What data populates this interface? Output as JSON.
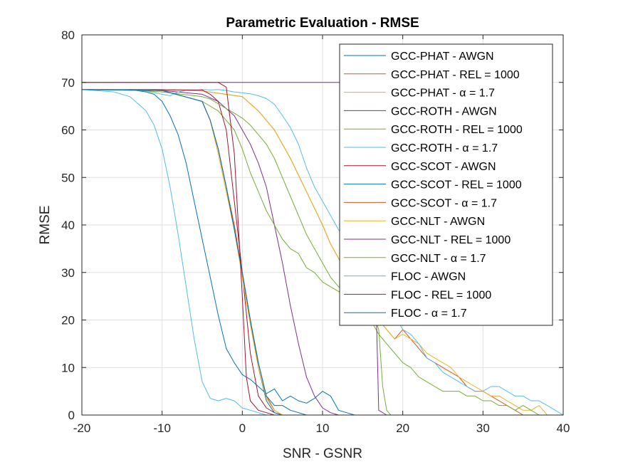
{
  "chart_data": {
    "type": "line",
    "title": "Parametric Evaluation - RMSE",
    "xlabel": "SNR - GSNR",
    "ylabel": "RMSE",
    "xlim": [
      -20,
      40
    ],
    "ylim": [
      0,
      80
    ],
    "xticks": [
      -20,
      -10,
      0,
      10,
      20,
      30,
      40
    ],
    "yticks": [
      0,
      10,
      20,
      30,
      40,
      50,
      60,
      70,
      80
    ],
    "grid": true,
    "legend_position": "top-right",
    "series": [
      {
        "name": "GCC-PHAT - AWGN",
        "color": "#0072BD",
        "x": [
          -20,
          -14,
          -12,
          -11,
          -10,
          -9,
          -8,
          -7,
          -6,
          -5,
          -4,
          -3,
          -2,
          -1,
          0,
          1,
          2,
          3,
          4,
          5,
          6,
          7,
          8,
          9,
          10,
          11,
          12,
          13,
          14,
          20
        ],
        "y": [
          68.5,
          68.5,
          68,
          67.5,
          66,
          63,
          59,
          53,
          45,
          37,
          29,
          21,
          14,
          11,
          8.5,
          7.5,
          6,
          4.5,
          5.5,
          3,
          4,
          3,
          2.5,
          3.5,
          5,
          4,
          1,
          0.5,
          0,
          0
        ]
      },
      {
        "name": "GCC-PHAT - REL = 1000",
        "color": "#D95319",
        "x": [
          -20,
          -10,
          -5,
          0,
          2,
          4,
          6,
          8,
          10,
          11,
          12,
          13,
          14,
          15,
          16,
          17,
          18,
          19,
          20,
          21,
          22,
          23,
          24,
          25,
          26,
          27,
          28,
          29,
          30,
          31,
          32,
          33,
          34,
          35,
          36,
          37,
          38,
          40
        ],
        "y": [
          68.5,
          68.5,
          68.2,
          67,
          64,
          60,
          54,
          47,
          40,
          36,
          33,
          29,
          27,
          25,
          22,
          20,
          18,
          16,
          18,
          16,
          14,
          12,
          11,
          10,
          9,
          8,
          6,
          5,
          5,
          4,
          3,
          2,
          1,
          0,
          0,
          0,
          0,
          0
        ]
      },
      {
        "name": "GCC-PHAT - α = 1.7",
        "color": "#EDB120",
        "x": [
          -20,
          -10,
          -5,
          0,
          2,
          4,
          6,
          8,
          10,
          11,
          12,
          13,
          14,
          15,
          16,
          17,
          18,
          19,
          20,
          21,
          22,
          23,
          24,
          25,
          26,
          27,
          28,
          29,
          30,
          31,
          32,
          33,
          34,
          35,
          36,
          37,
          38,
          40
        ],
        "y": [
          68.5,
          68.5,
          68.2,
          67,
          64,
          60,
          54,
          47,
          40,
          36,
          33,
          29,
          27,
          25,
          22,
          20,
          18,
          16,
          17,
          16,
          15,
          13,
          12,
          11,
          10,
          8,
          7,
          6,
          5,
          4,
          4,
          3,
          2,
          1,
          1,
          2,
          0,
          0
        ]
      },
      {
        "name": "GCC-ROTH - AWGN",
        "color": "#7E2F8E",
        "x": [
          -20,
          -10,
          -5,
          -3,
          -1,
          0,
          1,
          2,
          3,
          4,
          5,
          6,
          7,
          8,
          9,
          10,
          11,
          12,
          13,
          14,
          16,
          20
        ],
        "y": [
          68.5,
          68.3,
          67.5,
          66,
          63,
          60,
          57,
          53,
          48,
          40,
          32,
          23,
          15,
          8,
          4,
          1.5,
          0.5,
          0,
          0,
          0,
          0,
          0
        ]
      },
      {
        "name": "GCC-ROTH - REL = 1000",
        "color": "#77AC30",
        "x": [
          -20,
          -10,
          -5,
          -3,
          -1,
          0,
          1,
          2,
          3,
          4,
          5,
          6,
          7,
          8,
          9,
          10,
          11,
          12,
          13,
          14,
          15,
          16,
          17,
          18,
          19,
          20,
          21,
          22,
          23,
          24,
          25,
          26,
          27,
          28,
          29,
          30,
          31,
          32,
          33,
          34,
          35,
          36,
          37,
          40
        ],
        "y": [
          68.5,
          68.3,
          66,
          64,
          60,
          56,
          51,
          47,
          43,
          40,
          37,
          35,
          34,
          31,
          30,
          28,
          27,
          26,
          25,
          24,
          22,
          20,
          17,
          15,
          13,
          11,
          10,
          8,
          7,
          6,
          5,
          5,
          5,
          4,
          4,
          3,
          3,
          2,
          2,
          1,
          2,
          1,
          0,
          0
        ]
      },
      {
        "name": "GCC-ROTH - α = 1.7",
        "color": "#4DBEEE",
        "x": [
          -20,
          -15,
          -12,
          -10,
          -9,
          -8,
          -7,
          -6,
          -5,
          -4,
          -3,
          -2,
          -1,
          0,
          1,
          2,
          3,
          4,
          5,
          6,
          7,
          8,
          9,
          10,
          11,
          12,
          13,
          14,
          15,
          16,
          17,
          18,
          19,
          20,
          21,
          22,
          23,
          24,
          25,
          26,
          27,
          28,
          29,
          30,
          31,
          32,
          33,
          34,
          35,
          36,
          37,
          38,
          40
        ],
        "y": [
          68.5,
          68.5,
          68.2,
          67.5,
          67.2,
          68,
          68.3,
          68.3,
          68.5,
          68.4,
          68.5,
          68.3,
          68,
          67.8,
          67.6,
          67.2,
          66.6,
          65.4,
          63,
          60.5,
          57,
          52,
          48,
          45,
          42,
          39,
          37,
          35,
          33,
          31,
          28,
          24,
          21,
          18,
          17,
          15,
          12,
          11,
          9,
          8,
          7,
          6,
          5,
          5,
          6,
          6,
          5,
          4,
          4,
          3,
          3,
          2,
          0
        ]
      },
      {
        "name": "GCC-SCOT - AWGN",
        "color": "#A2142F",
        "x": [
          -20,
          -5,
          -4,
          -3,
          -2,
          -1,
          0,
          1,
          2,
          3,
          4,
          5,
          6,
          8,
          10
        ],
        "y": [
          68.5,
          68.4,
          67.5,
          66,
          60,
          45,
          30,
          13,
          4,
          1.5,
          0.5,
          0,
          0,
          0,
          0
        ]
      },
      {
        "name": "GCC-SCOT - REL = 1000",
        "color": "#0072BD",
        "x": [
          -20,
          -10,
          -5,
          -4,
          -3,
          -2,
          -1,
          0,
          1,
          2,
          3,
          4,
          5,
          6,
          7,
          8,
          10
        ],
        "y": [
          68.5,
          68.3,
          66,
          62,
          56,
          48,
          39,
          30,
          20,
          10,
          3,
          0.5,
          0,
          0,
          0,
          0,
          0
        ]
      },
      {
        "name": "GCC-SCOT - α = 1.7",
        "color": "#D95319",
        "x": [
          -20,
          -10,
          -5,
          -4,
          -3,
          -2,
          -1,
          0,
          1,
          2,
          3,
          4,
          5,
          6,
          7,
          8,
          10
        ],
        "y": [
          68.5,
          68.3,
          66,
          62,
          56,
          48,
          40,
          30,
          20,
          11,
          4,
          1,
          0,
          0,
          0,
          0,
          0
        ]
      },
      {
        "name": "GCC-NLT - AWGN",
        "color": "#EDB120",
        "x": [
          -20,
          -10,
          -5,
          -4,
          -3,
          -2,
          -1,
          0,
          1,
          2,
          3,
          4,
          5,
          6,
          7,
          8,
          10
        ],
        "y": [
          68.5,
          68.3,
          66,
          62,
          55,
          47,
          39,
          29,
          19,
          10,
          3.5,
          1,
          0,
          0,
          0,
          0,
          0
        ]
      },
      {
        "name": "GCC-NLT - REL = 1000",
        "color": "#7E2F8E",
        "x": [
          -20,
          0,
          15,
          16,
          17,
          18,
          20,
          40
        ],
        "y": [
          70,
          70,
          70,
          70,
          1,
          0,
          0,
          0
        ]
      },
      {
        "name": "GCC-NLT - α = 1.7",
        "color": "#77AC30",
        "x": [
          -20,
          -15,
          -12,
          -10,
          -8,
          -6,
          -5,
          -4,
          -3,
          -2,
          -1,
          0,
          1,
          2,
          3,
          4,
          5,
          6,
          7,
          8,
          9,
          10,
          11,
          12,
          13,
          14,
          15,
          16,
          17,
          17.5,
          18,
          18.5,
          19,
          20
        ],
        "y": [
          68.5,
          68.5,
          68.2,
          68,
          67.6,
          67.2,
          67,
          66.5,
          65.5,
          64.5,
          63.5,
          62.5,
          61,
          59,
          57,
          54,
          50,
          46,
          42,
          38,
          35,
          32,
          29,
          27,
          26,
          25,
          24,
          23,
          18,
          6,
          1,
          0,
          0,
          0
        ]
      },
      {
        "name": "FLOC - AWGN",
        "color": "#4DBEEE",
        "x": [
          -20,
          -16,
          -14,
          -12,
          -11,
          -10,
          -9,
          -8,
          -7,
          -6,
          -5,
          -4,
          -3,
          -2,
          -1,
          0,
          1,
          2,
          3,
          4,
          5
        ],
        "y": [
          68.5,
          68,
          67,
          64,
          61,
          56,
          48,
          38,
          27,
          16,
          7,
          3.5,
          3,
          3.5,
          3,
          1.5,
          1,
          0.5,
          0,
          0,
          0
        ]
      },
      {
        "name": "FLOC - REL = 1000",
        "color": "#A2142F",
        "x": [
          -20,
          -3,
          -2,
          -1,
          0,
          0.5,
          1,
          2,
          3,
          4,
          6
        ],
        "y": [
          70,
          70,
          69,
          55,
          25,
          8,
          3,
          1,
          0.5,
          0,
          0
        ]
      },
      {
        "name": "FLOC - α = 1.7",
        "color": "#0072BD",
        "x": [
          -20,
          -10,
          -5,
          -4,
          -3,
          -2,
          -1,
          0,
          1,
          2,
          3,
          4,
          5,
          6,
          8,
          10
        ],
        "y": [
          68.5,
          68.3,
          66,
          62,
          56,
          48,
          39,
          30,
          20,
          11,
          4,
          2,
          2,
          1,
          0,
          0
        ]
      }
    ]
  }
}
